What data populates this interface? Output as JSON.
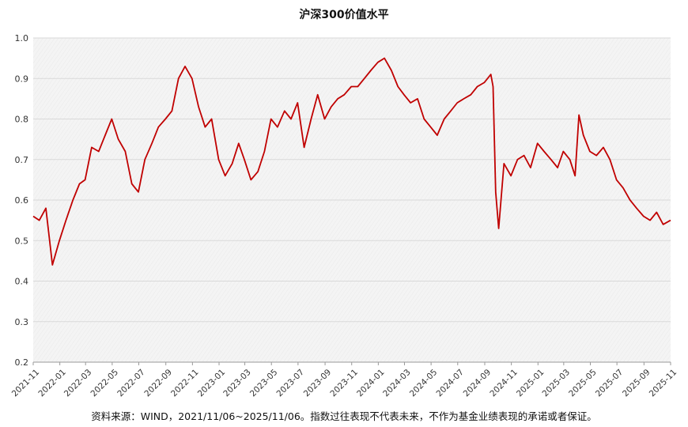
{
  "chart_data": {
    "type": "line",
    "title": "沪深300价值水平",
    "xlabel": "",
    "ylabel": "",
    "ylim": [
      0.2,
      1.0
    ],
    "yticks": [
      "0.2",
      "0.3",
      "0.4",
      "0.5",
      "0.6",
      "0.7",
      "0.8",
      "0.9",
      "1.0"
    ],
    "xlim": [
      "2021-11-06",
      "2025-11-06"
    ],
    "xticks": [
      "2021-11",
      "2022-01",
      "2022-03",
      "2022-05",
      "2022-07",
      "2022-09",
      "2022-11",
      "2023-01",
      "2023-03",
      "2023-05",
      "2023-07",
      "2023-09",
      "2023-11",
      "2024-01",
      "2024-03",
      "2024-05",
      "2024-07",
      "2024-09",
      "2024-11",
      "2025-01",
      "2025-03",
      "2025-05",
      "2025-07",
      "2025-09",
      "2025-11"
    ],
    "grid": true,
    "legend": "none",
    "line_color": "#C00000",
    "series": [
      {
        "x": [
          "2021-11-06",
          "2021-11-20",
          "2021-12-05",
          "2021-12-20",
          "2022-01-05",
          "2022-01-20",
          "2022-02-05",
          "2022-02-20",
          "2022-03-05",
          "2022-03-20",
          "2022-04-05",
          "2022-04-20",
          "2022-05-05",
          "2022-05-20",
          "2022-06-05",
          "2022-06-20",
          "2022-07-05",
          "2022-07-20",
          "2022-08-05",
          "2022-08-20",
          "2022-09-05",
          "2022-09-20",
          "2022-10-05",
          "2022-10-20",
          "2022-11-05",
          "2022-11-20",
          "2022-12-05",
          "2022-12-20",
          "2023-01-05",
          "2023-01-20",
          "2023-02-05",
          "2023-02-20",
          "2023-03-05",
          "2023-03-20",
          "2023-04-05",
          "2023-04-20",
          "2023-05-05",
          "2023-05-20",
          "2023-06-05",
          "2023-06-20",
          "2023-07-05",
          "2023-07-20",
          "2023-08-05",
          "2023-08-20",
          "2023-09-05",
          "2023-09-20",
          "2023-10-05",
          "2023-10-20",
          "2023-11-05",
          "2023-11-20",
          "2023-12-05",
          "2023-12-20",
          "2024-01-05",
          "2024-01-20",
          "2024-02-05",
          "2024-02-20",
          "2024-03-05",
          "2024-03-20",
          "2024-04-05",
          "2024-04-20",
          "2024-05-05",
          "2024-05-20",
          "2024-06-05",
          "2024-06-20",
          "2024-07-05",
          "2024-07-20",
          "2024-08-05",
          "2024-08-20",
          "2024-09-05",
          "2024-09-20",
          "2024-09-25",
          "2024-10-01",
          "2024-10-08",
          "2024-10-20",
          "2024-11-05",
          "2024-11-20",
          "2024-12-05",
          "2024-12-20",
          "2025-01-05",
          "2025-01-20",
          "2025-02-05",
          "2025-02-20",
          "2025-03-05",
          "2025-03-20",
          "2025-04-01",
          "2025-04-10",
          "2025-04-20",
          "2025-05-05",
          "2025-05-20",
          "2025-06-05",
          "2025-06-20",
          "2025-07-05",
          "2025-07-20",
          "2025-08-05",
          "2025-08-20",
          "2025-09-05",
          "2025-09-20",
          "2025-10-05",
          "2025-10-20",
          "2025-11-06"
        ],
        "y": [
          0.56,
          0.55,
          0.58,
          0.44,
          0.5,
          0.55,
          0.6,
          0.64,
          0.65,
          0.73,
          0.72,
          0.76,
          0.8,
          0.75,
          0.72,
          0.64,
          0.62,
          0.7,
          0.74,
          0.78,
          0.8,
          0.82,
          0.9,
          0.93,
          0.9,
          0.83,
          0.78,
          0.8,
          0.7,
          0.66,
          0.69,
          0.74,
          0.7,
          0.65,
          0.67,
          0.72,
          0.8,
          0.78,
          0.82,
          0.8,
          0.84,
          0.73,
          0.8,
          0.86,
          0.8,
          0.83,
          0.85,
          0.86,
          0.88,
          0.88,
          0.9,
          0.92,
          0.94,
          0.95,
          0.92,
          0.88,
          0.86,
          0.84,
          0.85,
          0.8,
          0.78,
          0.76,
          0.8,
          0.82,
          0.84,
          0.85,
          0.86,
          0.88,
          0.89,
          0.91,
          0.88,
          0.62,
          0.53,
          0.69,
          0.66,
          0.7,
          0.71,
          0.68,
          0.74,
          0.72,
          0.7,
          0.68,
          0.72,
          0.7,
          0.66,
          0.81,
          0.76,
          0.72,
          0.71,
          0.73,
          0.7,
          0.65,
          0.63,
          0.6,
          0.58,
          0.56,
          0.55,
          0.57,
          0.54,
          0.55
        ]
      }
    ]
  },
  "source_note": "资料来源：WIND，2021/11/06~2025/11/06。指数过往表现不代表未来，不作为基金业绩表现的承诺或者保证。"
}
